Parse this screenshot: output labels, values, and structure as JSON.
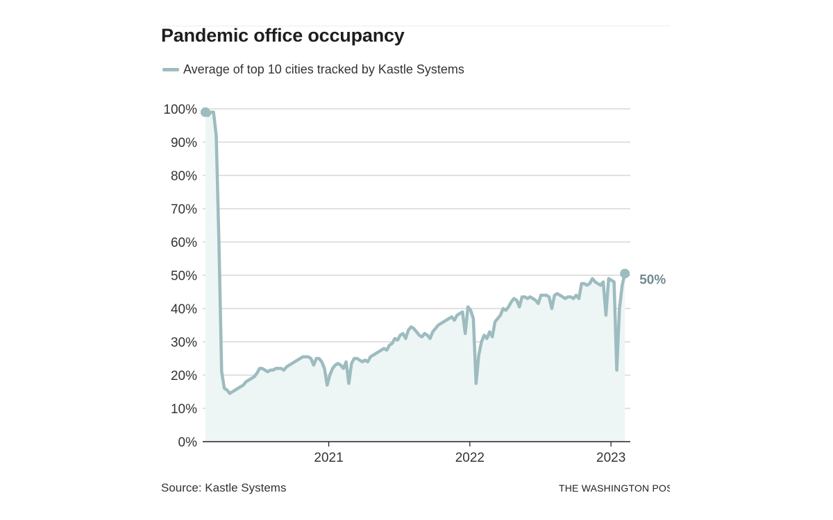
{
  "title": "Pandemic office occupancy",
  "source": "Source: Kastle Systems",
  "credit": "THE WASHINGTON POST",
  "colors": {
    "line": "#9dbcc0",
    "fill": "#eef5f5",
    "end_label": "#6f8c91",
    "grid": "#cfcfcf",
    "axis": "#222222"
  },
  "chart_data": {
    "type": "area",
    "legend": "Average of top 10 cities tracked by Kastle Systems",
    "ylim": [
      0,
      100
    ],
    "yticks": [
      0,
      10,
      20,
      30,
      40,
      50,
      60,
      70,
      80,
      90,
      100
    ],
    "yticks_format": "percent",
    "xticks": [
      {
        "x": "2021-01-01",
        "label": "2021"
      },
      {
        "x": "2022-01-01",
        "label": "2022"
      },
      {
        "x": "2023-01-01",
        "label": "2023"
      }
    ],
    "xlim": [
      "2020-02-10",
      "2023-02-20"
    ],
    "end_label": "50%",
    "series": [
      {
        "name": "Average of top 10 cities tracked by Kastle Systems",
        "points": [
          [
            "2020-02-17",
            99
          ],
          [
            "2020-02-24",
            98
          ],
          [
            "2020-03-02",
            99
          ],
          [
            "2020-03-09",
            99
          ],
          [
            "2020-03-16",
            92
          ],
          [
            "2020-03-23",
            60
          ],
          [
            "2020-03-30",
            21
          ],
          [
            "2020-04-06",
            16
          ],
          [
            "2020-04-13",
            15.5
          ],
          [
            "2020-04-20",
            14.5
          ],
          [
            "2020-04-27",
            15
          ],
          [
            "2020-05-04",
            15.5
          ],
          [
            "2020-05-11",
            16
          ],
          [
            "2020-05-18",
            16.5
          ],
          [
            "2020-05-25",
            17
          ],
          [
            "2020-06-01",
            18
          ],
          [
            "2020-06-08",
            18.5
          ],
          [
            "2020-06-15",
            19
          ],
          [
            "2020-06-22",
            19.5
          ],
          [
            "2020-06-29",
            20.5
          ],
          [
            "2020-07-06",
            22
          ],
          [
            "2020-07-13",
            22
          ],
          [
            "2020-07-20",
            21.5
          ],
          [
            "2020-07-27",
            21
          ],
          [
            "2020-08-03",
            21.5
          ],
          [
            "2020-08-10",
            21.5
          ],
          [
            "2020-08-17",
            22
          ],
          [
            "2020-08-24",
            22
          ],
          [
            "2020-08-31",
            22
          ],
          [
            "2020-09-07",
            21.5
          ],
          [
            "2020-09-14",
            22.5
          ],
          [
            "2020-09-21",
            23
          ],
          [
            "2020-09-28",
            23.5
          ],
          [
            "2020-10-05",
            24
          ],
          [
            "2020-10-12",
            24.5
          ],
          [
            "2020-10-19",
            25
          ],
          [
            "2020-10-26",
            25.5
          ],
          [
            "2020-11-02",
            25.5
          ],
          [
            "2020-11-09",
            25.5
          ],
          [
            "2020-11-16",
            25
          ],
          [
            "2020-11-23",
            23
          ],
          [
            "2020-11-30",
            25
          ],
          [
            "2020-12-07",
            25
          ],
          [
            "2020-12-14",
            24
          ],
          [
            "2020-12-21",
            22
          ],
          [
            "2020-12-28",
            17
          ],
          [
            "2021-01-04",
            20
          ],
          [
            "2021-01-11",
            22
          ],
          [
            "2021-01-18",
            23
          ],
          [
            "2021-01-25",
            23.5
          ],
          [
            "2021-02-01",
            23
          ],
          [
            "2021-02-08",
            22
          ],
          [
            "2021-02-15",
            24
          ],
          [
            "2021-02-22",
            17.5
          ],
          [
            "2021-03-01",
            23.5
          ],
          [
            "2021-03-08",
            25
          ],
          [
            "2021-03-15",
            25
          ],
          [
            "2021-03-22",
            24.5
          ],
          [
            "2021-03-29",
            24
          ],
          [
            "2021-04-05",
            24.5
          ],
          [
            "2021-04-12",
            24
          ],
          [
            "2021-04-19",
            25.5
          ],
          [
            "2021-04-26",
            26
          ],
          [
            "2021-05-03",
            26.5
          ],
          [
            "2021-05-10",
            27
          ],
          [
            "2021-05-17",
            27.5
          ],
          [
            "2021-05-24",
            28
          ],
          [
            "2021-05-31",
            27.5
          ],
          [
            "2021-06-07",
            29
          ],
          [
            "2021-06-14",
            29.5
          ],
          [
            "2021-06-21",
            31
          ],
          [
            "2021-06-28",
            30.5
          ],
          [
            "2021-07-05",
            32
          ],
          [
            "2021-07-12",
            32.5
          ],
          [
            "2021-07-19",
            31
          ],
          [
            "2021-07-26",
            33.5
          ],
          [
            "2021-08-02",
            34.5
          ],
          [
            "2021-08-09",
            34
          ],
          [
            "2021-08-16",
            33
          ],
          [
            "2021-08-23",
            32
          ],
          [
            "2021-08-30",
            31.5
          ],
          [
            "2021-09-06",
            32.5
          ],
          [
            "2021-09-13",
            32
          ],
          [
            "2021-09-20",
            31
          ],
          [
            "2021-09-27",
            33
          ],
          [
            "2021-10-04",
            34
          ],
          [
            "2021-10-11",
            35
          ],
          [
            "2021-10-18",
            35.5
          ],
          [
            "2021-10-25",
            36
          ],
          [
            "2021-11-01",
            36.5
          ],
          [
            "2021-11-08",
            37
          ],
          [
            "2021-11-15",
            37.5
          ],
          [
            "2021-11-22",
            36.5
          ],
          [
            "2021-11-29",
            38
          ],
          [
            "2021-12-06",
            38.5
          ],
          [
            "2021-12-13",
            39
          ],
          [
            "2021-12-20",
            32.5
          ],
          [
            "2021-12-27",
            40.5
          ],
          [
            "2022-01-03",
            39.5
          ],
          [
            "2022-01-10",
            37
          ],
          [
            "2022-01-17",
            17.5
          ],
          [
            "2022-01-24",
            26
          ],
          [
            "2022-01-31",
            30
          ],
          [
            "2022-02-07",
            32
          ],
          [
            "2022-02-14",
            31
          ],
          [
            "2022-02-21",
            33
          ],
          [
            "2022-02-28",
            31.5
          ],
          [
            "2022-03-07",
            36
          ],
          [
            "2022-03-14",
            37
          ],
          [
            "2022-03-21",
            38
          ],
          [
            "2022-03-28",
            40
          ],
          [
            "2022-04-04",
            39.5
          ],
          [
            "2022-04-11",
            40.5
          ],
          [
            "2022-04-18",
            42
          ],
          [
            "2022-04-25",
            43
          ],
          [
            "2022-05-02",
            42.5
          ],
          [
            "2022-05-09",
            40.5
          ],
          [
            "2022-05-16",
            43.5
          ],
          [
            "2022-05-23",
            43.5
          ],
          [
            "2022-05-30",
            43
          ],
          [
            "2022-06-06",
            43.5
          ],
          [
            "2022-06-13",
            43
          ],
          [
            "2022-06-20",
            42.5
          ],
          [
            "2022-06-27",
            41.5
          ],
          [
            "2022-07-04",
            44
          ],
          [
            "2022-07-11",
            44
          ],
          [
            "2022-07-18",
            44
          ],
          [
            "2022-07-25",
            43.5
          ],
          [
            "2022-08-01",
            40
          ],
          [
            "2022-08-08",
            44
          ],
          [
            "2022-08-15",
            44.5
          ],
          [
            "2022-08-22",
            44
          ],
          [
            "2022-08-29",
            43.5
          ],
          [
            "2022-09-05",
            43
          ],
          [
            "2022-09-12",
            43.5
          ],
          [
            "2022-09-19",
            43.5
          ],
          [
            "2022-09-26",
            43
          ],
          [
            "2022-10-03",
            44
          ],
          [
            "2022-10-10",
            43
          ],
          [
            "2022-10-17",
            47.5
          ],
          [
            "2022-10-24",
            47.5
          ],
          [
            "2022-10-31",
            47
          ],
          [
            "2022-11-07",
            47.5
          ],
          [
            "2022-11-14",
            49
          ],
          [
            "2022-11-21",
            48
          ],
          [
            "2022-11-28",
            47.5
          ],
          [
            "2022-12-05",
            47
          ],
          [
            "2022-12-12",
            48
          ],
          [
            "2022-12-19",
            38
          ],
          [
            "2022-12-26",
            49
          ],
          [
            "2023-01-02",
            48.5
          ],
          [
            "2023-01-09",
            48
          ],
          [
            "2023-01-16",
            21.5
          ],
          [
            "2023-01-23",
            40
          ],
          [
            "2023-01-30",
            47
          ],
          [
            "2023-02-06",
            50.5
          ]
        ]
      }
    ]
  }
}
